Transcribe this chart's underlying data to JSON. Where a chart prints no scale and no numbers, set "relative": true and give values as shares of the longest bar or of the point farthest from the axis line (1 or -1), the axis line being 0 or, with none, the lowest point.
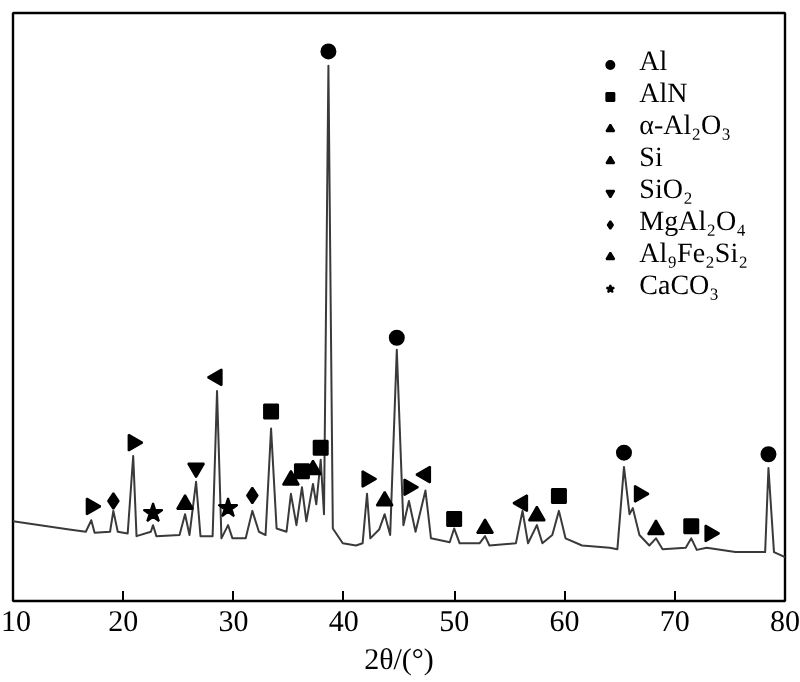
{
  "chart_data": {
    "type": "line",
    "xlabel": "2θ/(°)",
    "relative": true,
    "xlim": [
      10,
      80
    ],
    "xticks": [
      10,
      20,
      30,
      40,
      50,
      60,
      70,
      80
    ],
    "tick_labels": "x",
    "grid": false,
    "legend": "top right",
    "series": [
      {
        "color": "#3a3a3a",
        "x": [
          10.0,
          15.1,
          16.6,
          17.1,
          17.4,
          18.8,
          19.1,
          19.5,
          20.4,
          20.9,
          21.2,
          22.5,
          22.7,
          23.0,
          25.1,
          25.6,
          26.0,
          26.6,
          27.0,
          28.1,
          28.5,
          28.9,
          29.5,
          29.9,
          31.1,
          31.7,
          32.3,
          32.9,
          33.4,
          33.9,
          34.8,
          35.2,
          35.7,
          36.2,
          36.6,
          37.2,
          37.5,
          37.9,
          38.2,
          38.6,
          39.0,
          39.9,
          41.1,
          41.7,
          42.1,
          42.4,
          43.2,
          43.7,
          44.2,
          44.8,
          45.4,
          45.9,
          46.5,
          47.4,
          47.9,
          49.6,
          50.0,
          50.5,
          52.3,
          52.8,
          53.2,
          55.6,
          56.2,
          56.7,
          57.5,
          58.0,
          58.9,
          59.5,
          60.1,
          61.6,
          64.1,
          64.8,
          65.4,
          65.9,
          66.2,
          66.8,
          67.7,
          68.3,
          68.9,
          71.0,
          71.5,
          72.0,
          72.9,
          75.5,
          78.2,
          78.5,
          79.0,
          80.0
        ],
        "values": [
          0.145,
          0.13,
          0.126,
          0.147,
          0.124,
          0.126,
          0.164,
          0.126,
          0.123,
          0.264,
          0.118,
          0.126,
          0.138,
          0.118,
          0.12,
          0.158,
          0.12,
          0.217,
          0.118,
          0.118,
          0.382,
          0.114,
          0.138,
          0.114,
          0.114,
          0.164,
          0.126,
          0.12,
          0.314,
          0.132,
          0.126,
          0.195,
          0.138,
          0.207,
          0.145,
          0.213,
          0.176,
          0.257,
          0.158,
          0.974,
          0.132,
          0.105,
          0.101,
          0.105,
          0.195,
          0.114,
          0.13,
          0.158,
          0.12,
          0.457,
          0.138,
          0.182,
          0.126,
          0.201,
          0.114,
          0.107,
          0.132,
          0.105,
          0.105,
          0.118,
          0.101,
          0.105,
          0.164,
          0.105,
          0.138,
          0.105,
          0.12,
          0.164,
          0.114,
          0.101,
          0.097,
          0.094,
          0.244,
          0.158,
          0.169,
          0.12,
          0.101,
          0.114,
          0.094,
          0.097,
          0.114,
          0.093,
          0.097,
          0.089,
          0.089,
          0.242,
          0.089,
          0.08
        ]
      },
      {
        "type": "scatter",
        "name": "Al",
        "marker": "circle",
        "color": "#000000",
        "x": [
          38.6,
          44.8,
          65.4,
          78.5
        ],
        "values": [
          1.0,
          0.479,
          0.27,
          0.267
        ]
      },
      {
        "type": "scatter",
        "name": "AlN",
        "marker": "square",
        "color": "#000000",
        "x": [
          33.4,
          36.2,
          37.9,
          50.0,
          59.5,
          71.5
        ],
        "values": [
          0.345,
          0.236,
          0.279,
          0.149,
          0.191,
          0.136
        ]
      },
      {
        "type": "scatter",
        "name": "α-Al₂O₃",
        "marker": "triangle",
        "color": "#000000",
        "x": [
          25.6,
          35.2,
          37.2,
          43.7,
          52.8,
          57.5,
          68.3
        ],
        "values": [
          0.176,
          0.22,
          0.239,
          0.182,
          0.132,
          0.155,
          0.13
        ]
      },
      {
        "type": "scatter",
        "name": "Si",
        "marker": "triangle-left",
        "color": "#000000",
        "x": [
          28.5,
          47.4,
          56.2
        ],
        "values": [
          0.407,
          0.23,
          0.178
        ]
      },
      {
        "type": "scatter",
        "name": "SiO₂",
        "marker": "triangle-down",
        "color": "#000000",
        "x": [
          26.6
        ],
        "values": [
          0.242
        ]
      },
      {
        "type": "scatter",
        "name": "MgAl₂O₄",
        "marker": "diamond",
        "color": "#000000",
        "x": [
          19.1,
          31.7
        ],
        "values": [
          0.182,
          0.192
        ]
      },
      {
        "type": "scatter",
        "name": "Al₉Fe₂Si₂",
        "marker": "triangle-right",
        "color": "#000000",
        "x": [
          17.1,
          20.9,
          42.1,
          45.9,
          66.8,
          73.2
        ],
        "values": [
          0.172,
          0.288,
          0.222,
          0.207,
          0.195,
          0.123
        ]
      },
      {
        "type": "scatter",
        "name": "CaCO₃",
        "marker": "star",
        "color": "#000000",
        "x": [
          22.7,
          29.5
        ],
        "values": [
          0.16,
          0.169
        ]
      }
    ]
  }
}
